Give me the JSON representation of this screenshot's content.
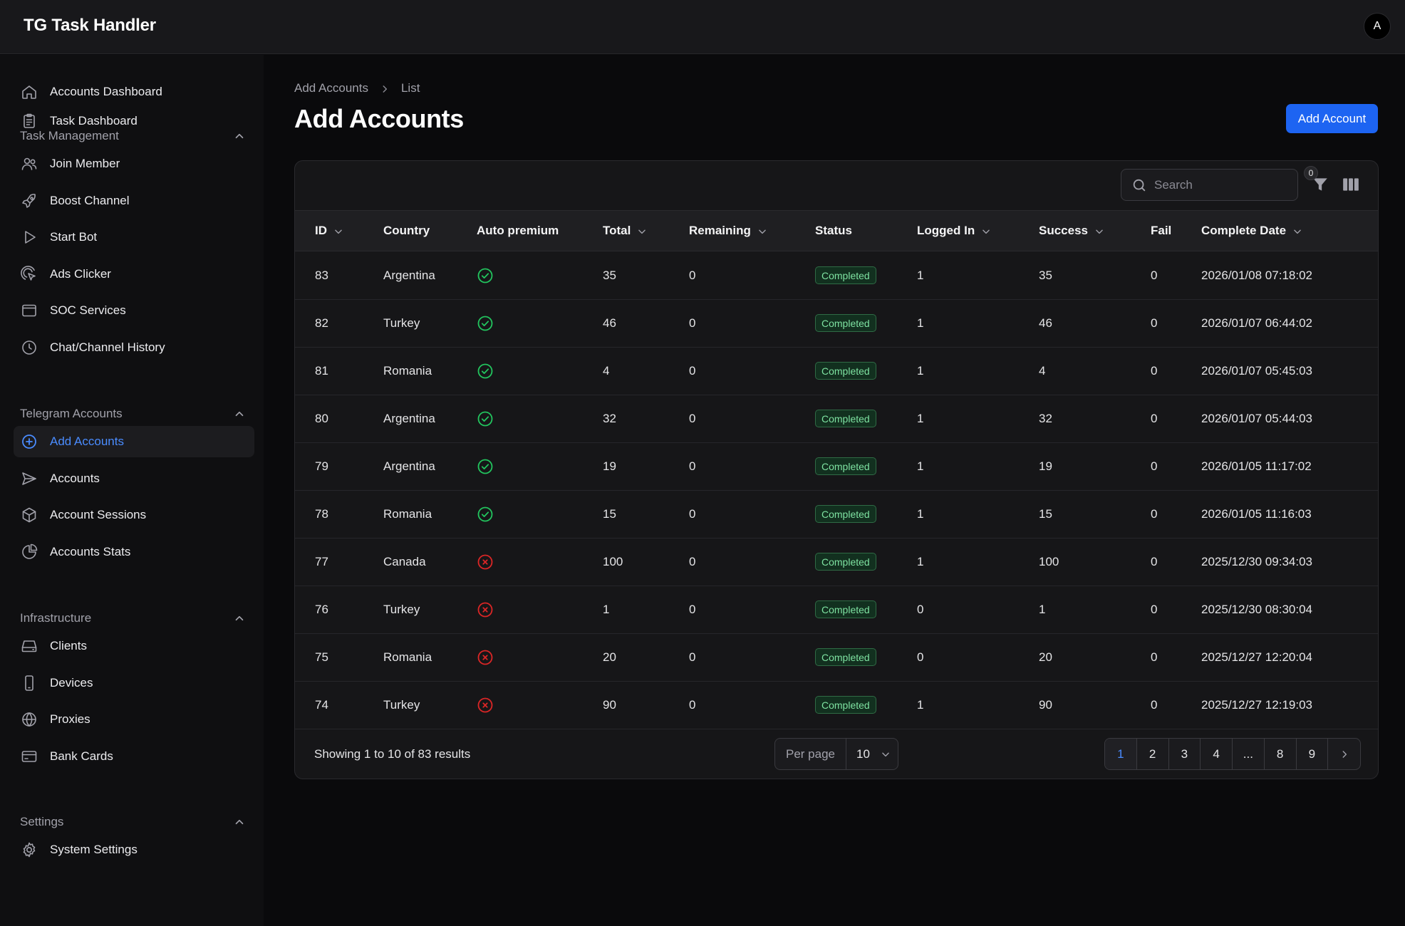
{
  "app": {
    "title": "TG Task Handler",
    "avatar_initial": "A"
  },
  "sidebar": {
    "top_items": [
      {
        "label": "Accounts Dashboard",
        "icon": "home-icon"
      },
      {
        "label": "Task Dashboard",
        "icon": "clipboard-icon"
      }
    ],
    "groups": [
      {
        "label": "Task Management",
        "items": [
          {
            "label": "Join Member",
            "icon": "users-icon"
          },
          {
            "label": "Boost Channel",
            "icon": "rocket-icon"
          },
          {
            "label": "Start Bot",
            "icon": "play-icon"
          },
          {
            "label": "Ads Clicker",
            "icon": "cursor-click-icon"
          },
          {
            "label": "SOC Services",
            "icon": "window-icon"
          },
          {
            "label": "Chat/Channel History",
            "icon": "clock-icon"
          }
        ]
      },
      {
        "label": "Telegram Accounts",
        "items": [
          {
            "label": "Add Accounts",
            "icon": "plus-circle-icon",
            "active": true
          },
          {
            "label": "Accounts",
            "icon": "send-icon"
          },
          {
            "label": "Account Sessions",
            "icon": "cube-icon"
          },
          {
            "label": "Accounts Stats",
            "icon": "pie-chart-icon"
          }
        ]
      },
      {
        "label": "Infrastructure",
        "items": [
          {
            "label": "Clients",
            "icon": "server-icon"
          },
          {
            "label": "Devices",
            "icon": "phone-icon"
          },
          {
            "label": "Proxies",
            "icon": "globe-icon"
          },
          {
            "label": "Bank Cards",
            "icon": "credit-card-icon"
          }
        ]
      },
      {
        "label": "Settings",
        "items": [
          {
            "label": "System Settings",
            "icon": "gear-icon"
          }
        ]
      }
    ]
  },
  "breadcrumb": {
    "parent": "Add Accounts",
    "current": "List"
  },
  "page": {
    "title": "Add Accounts",
    "primary_action": "Add Account"
  },
  "toolbar": {
    "search_placeholder": "Search",
    "filter_count": "0"
  },
  "table": {
    "columns": [
      "ID",
      "Country",
      "Auto premium",
      "Total",
      "Remaining",
      "Status",
      "Logged In",
      "Success",
      "Fail",
      "Complete Date"
    ],
    "rows": [
      {
        "id": "83",
        "country": "Argentina",
        "auto_premium": true,
        "total": "35",
        "remaining": "0",
        "status": "Completed",
        "logged_in": "1",
        "success": "35",
        "fail": "0",
        "complete_date": "2026/01/08 07:18:02"
      },
      {
        "id": "82",
        "country": "Turkey",
        "auto_premium": true,
        "total": "46",
        "remaining": "0",
        "status": "Completed",
        "logged_in": "1",
        "success": "46",
        "fail": "0",
        "complete_date": "2026/01/07 06:44:02"
      },
      {
        "id": "81",
        "country": "Romania",
        "auto_premium": true,
        "total": "4",
        "remaining": "0",
        "status": "Completed",
        "logged_in": "1",
        "success": "4",
        "fail": "0",
        "complete_date": "2026/01/07 05:45:03"
      },
      {
        "id": "80",
        "country": "Argentina",
        "auto_premium": true,
        "total": "32",
        "remaining": "0",
        "status": "Completed",
        "logged_in": "1",
        "success": "32",
        "fail": "0",
        "complete_date": "2026/01/07 05:44:03"
      },
      {
        "id": "79",
        "country": "Argentina",
        "auto_premium": true,
        "total": "19",
        "remaining": "0",
        "status": "Completed",
        "logged_in": "1",
        "success": "19",
        "fail": "0",
        "complete_date": "2026/01/05 11:17:02"
      },
      {
        "id": "78",
        "country": "Romania",
        "auto_premium": true,
        "total": "15",
        "remaining": "0",
        "status": "Completed",
        "logged_in": "1",
        "success": "15",
        "fail": "0",
        "complete_date": "2026/01/05 11:16:03"
      },
      {
        "id": "77",
        "country": "Canada",
        "auto_premium": false,
        "total": "100",
        "remaining": "0",
        "status": "Completed",
        "logged_in": "1",
        "success": "100",
        "fail": "0",
        "complete_date": "2025/12/30 09:34:03"
      },
      {
        "id": "76",
        "country": "Turkey",
        "auto_premium": false,
        "total": "1",
        "remaining": "0",
        "status": "Completed",
        "logged_in": "0",
        "success": "1",
        "fail": "0",
        "complete_date": "2025/12/30 08:30:04"
      },
      {
        "id": "75",
        "country": "Romania",
        "auto_premium": false,
        "total": "20",
        "remaining": "0",
        "status": "Completed",
        "logged_in": "0",
        "success": "20",
        "fail": "0",
        "complete_date": "2025/12/27 12:20:04"
      },
      {
        "id": "74",
        "country": "Turkey",
        "auto_premium": false,
        "total": "90",
        "remaining": "0",
        "status": "Completed",
        "logged_in": "1",
        "success": "90",
        "fail": "0",
        "complete_date": "2025/12/27 12:19:03"
      }
    ]
  },
  "footer": {
    "results_text": "Showing 1 to 10 of 83 results",
    "per_page_label": "Per page",
    "per_page_value": "10",
    "pages": [
      "1",
      "2",
      "3",
      "4",
      "...",
      "8",
      "9"
    ],
    "current_page": "1"
  },
  "colors": {
    "accent": "#1d64f2",
    "success": "#22c55e",
    "danger": "#dc2626"
  }
}
